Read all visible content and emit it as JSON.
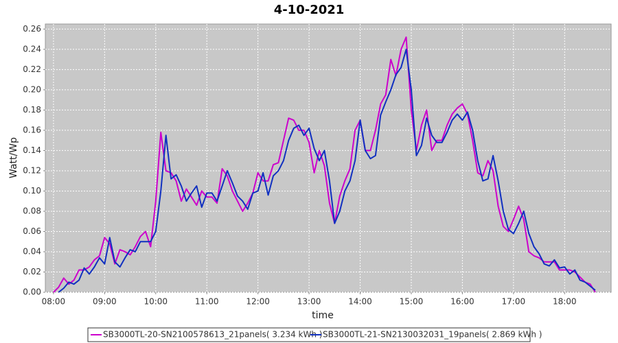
{
  "chart_data": {
    "type": "line",
    "title": "4-10-2021",
    "x_label": "time",
    "y_label": "Watt/Wp",
    "x": [
      8.0,
      8.1,
      8.2,
      8.3,
      8.4,
      8.5,
      8.6,
      8.7,
      8.8,
      8.9,
      9.0,
      9.1,
      9.2,
      9.3,
      9.4,
      9.5,
      9.6,
      9.7,
      9.8,
      9.9,
      10.0,
      10.1,
      10.2,
      10.3,
      10.4,
      10.5,
      10.6,
      10.7,
      10.8,
      10.9,
      11.0,
      11.1,
      11.2,
      11.3,
      11.4,
      11.5,
      11.6,
      11.7,
      11.8,
      11.9,
      12.0,
      12.1,
      12.2,
      12.3,
      12.4,
      12.5,
      12.6,
      12.7,
      12.8,
      12.9,
      13.0,
      13.1,
      13.2,
      13.3,
      13.4,
      13.5,
      13.6,
      13.7,
      13.8,
      13.9,
      14.0,
      14.1,
      14.2,
      14.3,
      14.4,
      14.5,
      14.6,
      14.7,
      14.8,
      14.9,
      15.0,
      15.1,
      15.2,
      15.3,
      15.4,
      15.5,
      15.6,
      15.7,
      15.8,
      15.9,
      16.0,
      16.1,
      16.2,
      16.3,
      16.4,
      16.5,
      16.6,
      16.7,
      16.8,
      16.9,
      17.0,
      17.1,
      17.2,
      17.3,
      17.4,
      17.5,
      17.6,
      17.7,
      17.8,
      17.9,
      18.0,
      18.1,
      18.2,
      18.3,
      18.4,
      18.5,
      18.6
    ],
    "series": [
      {
        "name": "SB3000TL-20-SN2100578613_21panels( 3.234 kWh )",
        "color": "#cc00cc",
        "values": [
          0,
          0.005,
          0.014,
          0.008,
          0.012,
          0.022,
          0.022,
          0.025,
          0.032,
          0.036,
          0.054,
          0.048,
          0.028,
          0.042,
          0.04,
          0.037,
          0.045,
          0.055,
          0.06,
          0.045,
          0.09,
          0.158,
          0.12,
          0.118,
          0.11,
          0.09,
          0.102,
          0.094,
          0.086,
          0.1,
          0.094,
          0.094,
          0.088,
          0.122,
          0.115,
          0.1,
          0.09,
          0.08,
          0.088,
          0.098,
          0.118,
          0.11,
          0.11,
          0.126,
          0.128,
          0.15,
          0.172,
          0.17,
          0.16,
          0.16,
          0.148,
          0.118,
          0.14,
          0.125,
          0.088,
          0.068,
          0.095,
          0.11,
          0.122,
          0.16,
          0.17,
          0.14,
          0.14,
          0.16,
          0.186,
          0.195,
          0.23,
          0.214,
          0.24,
          0.252,
          0.18,
          0.14,
          0.165,
          0.18,
          0.14,
          0.15,
          0.15,
          0.165,
          0.176,
          0.182,
          0.186,
          0.176,
          0.15,
          0.118,
          0.115,
          0.13,
          0.12,
          0.085,
          0.065,
          0.06,
          0.072,
          0.085,
          0.072,
          0.04,
          0.036,
          0.034,
          0.03,
          0.03,
          0.03,
          0.022,
          0.022,
          0.022,
          0.02,
          0.015,
          0.01,
          0.008,
          0
        ]
      },
      {
        "name": "SB3000TL-21-SN2130032031_19panels( 2.869 kWh )",
        "color": "#1030c0",
        "values": [
          null,
          0,
          0.004,
          0.01,
          0.008,
          0.012,
          0.024,
          0.018,
          0.025,
          0.034,
          0.028,
          0.054,
          0.03,
          0.025,
          0.034,
          0.042,
          0.04,
          0.05,
          0.05,
          0.05,
          0.06,
          0.1,
          0.155,
          0.112,
          0.116,
          0.105,
          0.09,
          0.098,
          0.105,
          0.084,
          0.098,
          0.098,
          0.09,
          0.105,
          0.12,
          0.108,
          0.095,
          0.09,
          0.082,
          0.098,
          0.1,
          0.118,
          0.096,
          0.115,
          0.12,
          0.13,
          0.15,
          0.162,
          0.165,
          0.155,
          0.162,
          0.142,
          0.13,
          0.14,
          0.11,
          0.068,
          0.08,
          0.1,
          0.11,
          0.13,
          0.17,
          0.14,
          0.132,
          0.135,
          0.175,
          0.188,
          0.2,
          0.215,
          0.222,
          0.24,
          0.2,
          0.135,
          0.145,
          0.172,
          0.155,
          0.148,
          0.148,
          0.158,
          0.17,
          0.176,
          0.17,
          0.178,
          0.16,
          0.13,
          0.11,
          0.112,
          0.135,
          0.11,
          0.08,
          0.062,
          0.058,
          0.068,
          0.08,
          0.058,
          0.045,
          0.038,
          0.028,
          0.026,
          0.032,
          0.024,
          0.025,
          0.018,
          0.022,
          0.012,
          0.01,
          0.006,
          0.002
        ]
      }
    ],
    "xlim": [
      7.84,
      18.91
    ],
    "ylim": [
      0,
      0.265
    ],
    "xticks": [
      {
        "value": 8,
        "label": "08:00"
      },
      {
        "value": 9,
        "label": "09:00"
      },
      {
        "value": 10,
        "label": "10:00"
      },
      {
        "value": 11,
        "label": "11:00"
      },
      {
        "value": 12,
        "label": "12:00"
      },
      {
        "value": 13,
        "label": "13:00"
      },
      {
        "value": 14,
        "label": "14:00"
      },
      {
        "value": 15,
        "label": "15:00"
      },
      {
        "value": 16,
        "label": "16:00"
      },
      {
        "value": 17,
        "label": "17:00"
      },
      {
        "value": 18,
        "label": "18:00"
      }
    ],
    "yticks": [
      {
        "value": 0,
        "label": "0.00"
      },
      {
        "value": 0.02,
        "label": "0.02"
      },
      {
        "value": 0.04,
        "label": "0.04"
      },
      {
        "value": 0.06,
        "label": "0.06"
      },
      {
        "value": 0.08,
        "label": "0.08"
      },
      {
        "value": 0.1,
        "label": "0.10"
      },
      {
        "value": 0.12,
        "label": "0.12"
      },
      {
        "value": 0.14,
        "label": "0.14"
      },
      {
        "value": 0.16,
        "label": "0.16"
      },
      {
        "value": 0.18,
        "label": "0.18"
      },
      {
        "value": 0.2,
        "label": "0.20"
      },
      {
        "value": 0.22,
        "label": "0.22"
      },
      {
        "value": 0.24,
        "label": "0.24"
      },
      {
        "value": 0.26,
        "label": "0.26"
      }
    ],
    "grid": true,
    "legend": "bottom"
  }
}
